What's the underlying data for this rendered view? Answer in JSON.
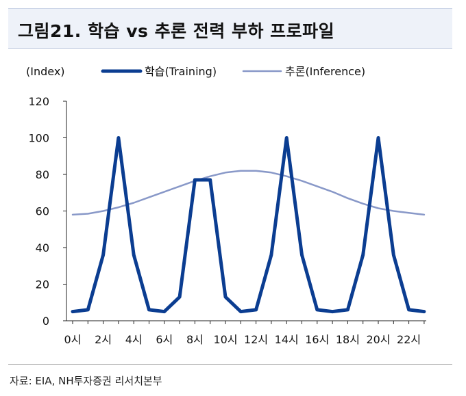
{
  "header": {
    "title": "그림21. 학습 vs 추론 전력 부하 프로파일"
  },
  "footer": {
    "source": "자료: EIA, NH투자증권 리서치본부"
  },
  "chart_data": {
    "type": "line",
    "title": "그림21. 학습 vs 추론 전력 부하 프로파일",
    "ylabel": "(Index)",
    "xlabel": "",
    "ylim": [
      0,
      120
    ],
    "yticks": [
      "0",
      "20",
      "40",
      "60",
      "80",
      "100",
      "120"
    ],
    "x": [
      0,
      1,
      2,
      3,
      4,
      5,
      6,
      7,
      8,
      9,
      10,
      11,
      12,
      13,
      14,
      15,
      16,
      17,
      18,
      19,
      20,
      21,
      22,
      23
    ],
    "xtick_labels": [
      "0시",
      "2시",
      "4시",
      "6시",
      "8시",
      "10시",
      "12시",
      "14시",
      "16시",
      "18시",
      "20시",
      "22시"
    ],
    "xtick_positions": [
      0,
      2,
      4,
      6,
      8,
      10,
      12,
      14,
      16,
      18,
      20,
      22
    ],
    "grid": false,
    "legend_position": "top",
    "series": [
      {
        "name": "학습(Training)",
        "color": "#0b3d91",
        "values": [
          5,
          6,
          36,
          100,
          36,
          6,
          5,
          13,
          77,
          77,
          13,
          5,
          6,
          36,
          100,
          36,
          6,
          5,
          6,
          36,
          100,
          36,
          6,
          5
        ]
      },
      {
        "name": "추론(Inference)",
        "color": "#8898c8",
        "values": [
          58,
          58.5,
          60,
          62,
          64.5,
          67.5,
          70.5,
          73.5,
          76.5,
          79,
          81,
          82,
          82,
          81,
          79,
          76.5,
          73.5,
          70.5,
          67,
          64,
          61.5,
          60,
          59,
          58
        ]
      }
    ]
  }
}
